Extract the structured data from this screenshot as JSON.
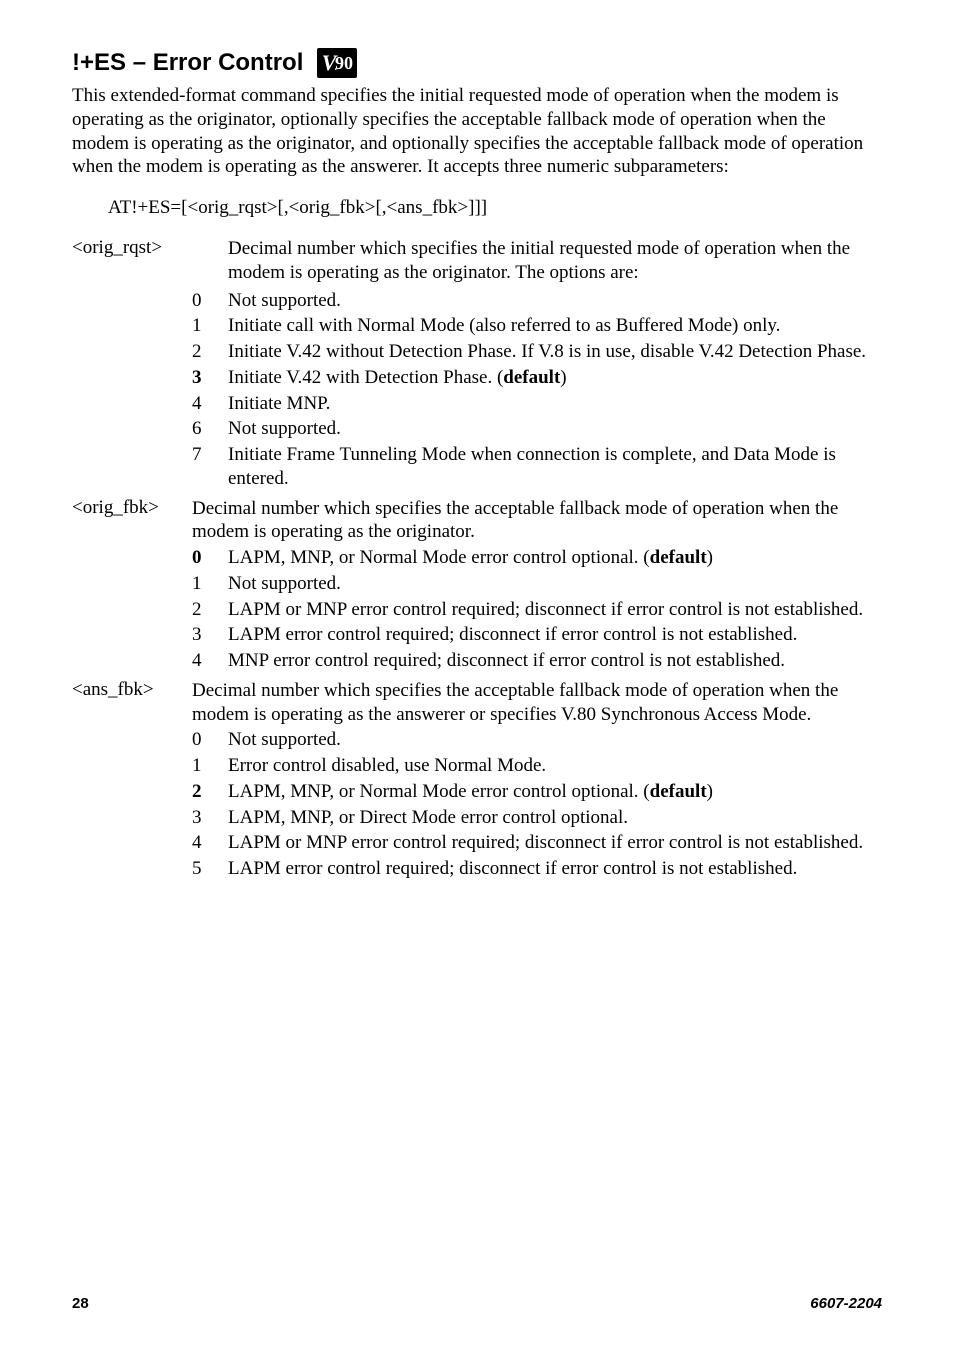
{
  "title": "!+ES – Error Control",
  "badge": {
    "v": "V",
    "dot": ".",
    "num": "90"
  },
  "intro": "This extended-format command specifies the initial requested mode of operation when the modem is operating as the originator, optionally specifies the acceptable fallback mode of operation when the modem is operating as the originator, and optionally specifies the acceptable fallback mode of operation when the modem is operating as the answerer. It accepts three numeric subparameters:",
  "syntax": "AT!+ES=[<orig_rqst>[,<orig_fbk>[,<ans_fbk>]]]",
  "params": [
    {
      "label": "<orig_rqst>",
      "desc_indented": true,
      "desc": "Decimal number which specifies the initial requested mode of operation when the modem is operating as the originator. The options are:",
      "options": [
        {
          "num": "0",
          "bold": false,
          "text": "Not supported."
        },
        {
          "num": "1",
          "bold": false,
          "text": "Initiate call with Normal Mode (also referred to as Buffered Mode) only."
        },
        {
          "num": "2",
          "bold": false,
          "text": "Initiate V.42 without Detection Phase. If V.8 is in use, disable V.42 Detection Phase."
        },
        {
          "num": "3",
          "bold": true,
          "text_pre": "Initiate V.42 with Detection Phase. (",
          "text_bold": "default",
          "text_post": ")"
        },
        {
          "num": "4",
          "bold": false,
          "text": "Initiate MNP."
        },
        {
          "num": "6",
          "bold": false,
          "text": "Not supported."
        },
        {
          "num": "7",
          "bold": false,
          "text": "Initiate Frame Tunneling Mode when connection is complete, and Data Mode is entered."
        }
      ]
    },
    {
      "label": "<orig_fbk>",
      "desc_indented": false,
      "desc": "Decimal number which specifies the acceptable fallback mode of operation when the modem is operating as the originator.",
      "options": [
        {
          "num": "0",
          "bold": true,
          "text_pre": "LAPM, MNP, or Normal Mode error control optional. (",
          "text_bold": "default",
          "text_post": ")"
        },
        {
          "num": "1",
          "bold": false,
          "text": "Not supported."
        },
        {
          "num": "2",
          "bold": false,
          "text": "LAPM or MNP error control required; disconnect if error control is not established."
        },
        {
          "num": "3",
          "bold": false,
          "text": "LAPM error control required; disconnect if error control is not established."
        },
        {
          "num": "4",
          "bold": false,
          "text": "MNP error control required; disconnect if error control is not established."
        }
      ]
    },
    {
      "label": "<ans_fbk>",
      "desc_indented": false,
      "desc": "Decimal number which specifies the acceptable fallback mode of operation when the modem is operating as the answerer or specifies V.80 Synchronous Access Mode.",
      "options": [
        {
          "num": "0",
          "bold": false,
          "text": "Not supported."
        },
        {
          "num": "1",
          "bold": false,
          "text": "Error control disabled, use Normal Mode."
        },
        {
          "num": "2",
          "bold": true,
          "text_pre": "LAPM, MNP, or Normal Mode error control optional. (",
          "text_bold": "default",
          "text_post": ")"
        },
        {
          "num": "3",
          "bold": false,
          "text": "LAPM, MNP, or Direct Mode error control optional."
        },
        {
          "num": "4",
          "bold": false,
          "text": "LAPM or MNP error control required; disconnect if error control is not established."
        },
        {
          "num": "5",
          "bold": false,
          "text": "LAPM error control required; disconnect if error control is not established."
        }
      ]
    }
  ],
  "footer": {
    "page": "28",
    "docid": "6607-2204"
  }
}
